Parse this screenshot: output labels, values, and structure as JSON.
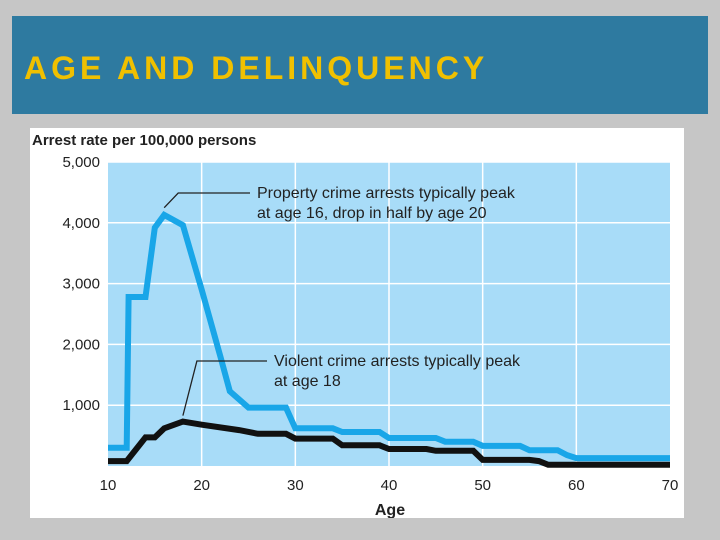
{
  "slide": {
    "title": "AGE AND DELINQUENCY"
  },
  "colors": {
    "title_bar": "#2e7aa0",
    "title_text": "#f0c000",
    "plot_background": "#a8dcf8",
    "property_line": "#19a6e8",
    "violent_line": "#111111"
  },
  "chart_data": {
    "type": "line",
    "title": "",
    "ylabel": "Arrest rate per 100,000 persons",
    "xlabel": "Age",
    "xlim": [
      10,
      70
    ],
    "ylim": [
      0,
      5000
    ],
    "x_ticks": [
      "10",
      "20",
      "30",
      "40",
      "50",
      "60",
      "70"
    ],
    "y_ticks": [
      "1,000",
      "2,000",
      "3,000",
      "4,000",
      "5,000"
    ],
    "grid": true,
    "series": [
      {
        "key": "property",
        "x": [
          10,
          12,
          12.2,
          14,
          15,
          16,
          18,
          20,
          22,
          23,
          25,
          29,
          30,
          34,
          35,
          39,
          40,
          45,
          46,
          49,
          50,
          54,
          55,
          58,
          59,
          60,
          69,
          70
        ],
        "y": [
          300,
          300,
          2780,
          2780,
          3920,
          4130,
          3960,
          2900,
          1800,
          1230,
          960,
          960,
          620,
          620,
          560,
          560,
          460,
          460,
          400,
          400,
          330,
          330,
          260,
          260,
          180,
          130,
          130,
          130
        ]
      },
      {
        "key": "violent",
        "x": [
          10,
          12,
          14,
          15,
          16,
          18,
          20,
          24,
          26,
          29,
          30,
          34,
          35,
          39,
          40,
          44,
          45,
          49,
          50,
          55,
          56,
          57,
          70
        ],
        "y": [
          80,
          80,
          470,
          470,
          620,
          730,
          680,
          590,
          530,
          530,
          450,
          450,
          340,
          340,
          280,
          280,
          250,
          250,
          100,
          100,
          80,
          20,
          20
        ]
      }
    ],
    "annotations": [
      {
        "lines": [
          "Property crime arrests typically peak",
          "at age 16, drop in half by age 20"
        ],
        "x": 16,
        "y": 4150
      },
      {
        "lines": [
          "Violent crime arrests typically peak",
          "at age 18"
        ],
        "x": 18,
        "y": 730
      }
    ]
  }
}
